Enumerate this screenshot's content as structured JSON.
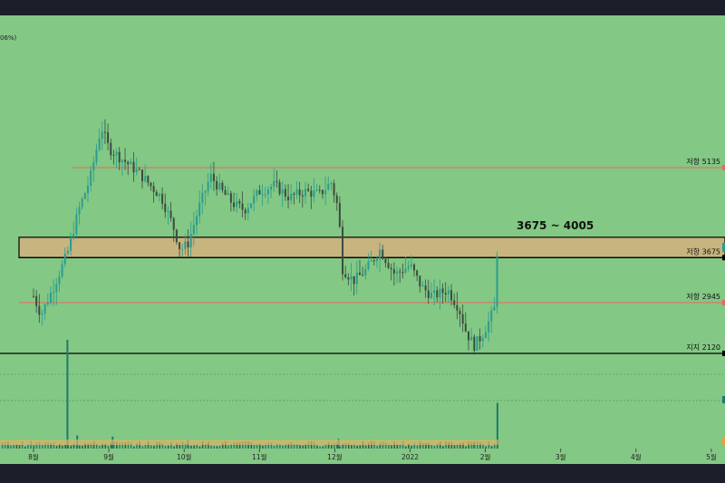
{
  "header": {
    "corner_text": "06%)"
  },
  "chart_data": {
    "type": "candlestick",
    "title": "",
    "xlabel": "",
    "ylabel": "",
    "x_ticks": [
      "8월",
      "9월",
      "10월",
      "11월",
      "12월",
      "2022",
      "2월",
      "3월",
      "4월",
      "5월"
    ],
    "ylim": [
      1700,
      6600
    ],
    "levels": [
      {
        "label": "저항 5135",
        "value": 5135,
        "color": "#e8685f"
      },
      {
        "label": "저항 3675",
        "value": 3675,
        "color": "#000000"
      },
      {
        "label": "저항 2945",
        "value": 2945,
        "color": "#e8685f"
      },
      {
        "label": "지지 2120",
        "value": 2120,
        "color": "#000000"
      }
    ],
    "zone": {
      "low": 3675,
      "high": 4005,
      "label": "3675 ~ 4005",
      "fill": "#c7b47f"
    },
    "price_path": [
      {
        "x": 0.0,
        "y": 3050
      },
      {
        "x": 0.1,
        "y": 2750
      },
      {
        "x": 0.25,
        "y": 3150
      },
      {
        "x": 0.45,
        "y": 3750
      },
      {
        "x": 0.6,
        "y": 4450
      },
      {
        "x": 0.75,
        "y": 4950
      },
      {
        "x": 0.9,
        "y": 5800
      },
      {
        "x": 1.0,
        "y": 5450
      },
      {
        "x": 1.1,
        "y": 5350
      },
      {
        "x": 1.25,
        "y": 5200
      },
      {
        "x": 1.4,
        "y": 5050
      },
      {
        "x": 1.55,
        "y": 4850
      },
      {
        "x": 1.7,
        "y": 4650
      },
      {
        "x": 1.85,
        "y": 4200
      },
      {
        "x": 1.95,
        "y": 3800
      },
      {
        "x": 2.05,
        "y": 3900
      },
      {
        "x": 2.2,
        "y": 4500
      },
      {
        "x": 2.35,
        "y": 5000
      },
      {
        "x": 2.5,
        "y": 4750
      },
      {
        "x": 2.65,
        "y": 4550
      },
      {
        "x": 2.8,
        "y": 4450
      },
      {
        "x": 3.0,
        "y": 4750
      },
      {
        "x": 3.2,
        "y": 4850
      },
      {
        "x": 3.4,
        "y": 4650
      },
      {
        "x": 3.6,
        "y": 4750
      },
      {
        "x": 3.8,
        "y": 4700
      },
      {
        "x": 3.95,
        "y": 4900
      },
      {
        "x": 4.05,
        "y": 4450
      },
      {
        "x": 4.1,
        "y": 3500
      },
      {
        "x": 4.25,
        "y": 3300
      },
      {
        "x": 4.4,
        "y": 3450
      },
      {
        "x": 4.6,
        "y": 3800
      },
      {
        "x": 4.8,
        "y": 3400
      },
      {
        "x": 5.0,
        "y": 3550
      },
      {
        "x": 5.15,
        "y": 3200
      },
      {
        "x": 5.3,
        "y": 3050
      },
      {
        "x": 5.5,
        "y": 3150
      },
      {
        "x": 5.65,
        "y": 2850
      },
      {
        "x": 5.75,
        "y": 2450
      },
      {
        "x": 5.85,
        "y": 2250
      },
      {
        "x": 5.95,
        "y": 2400
      },
      {
        "x": 6.05,
        "y": 2650
      },
      {
        "x": 6.12,
        "y": 2850
      },
      {
        "x": 6.15,
        "y": 3600
      },
      {
        "x": 6.17,
        "y": 4150
      }
    ],
    "volume_scale_max": 100,
    "volume_spikes": [
      {
        "x": 0.45,
        "v": 100
      },
      {
        "x": 0.58,
        "v": 12
      },
      {
        "x": 1.05,
        "v": 11
      },
      {
        "x": 2.05,
        "v": 8
      },
      {
        "x": 4.05,
        "v": 9
      },
      {
        "x": 5.85,
        "v": 6
      },
      {
        "x": 6.16,
        "v": 42
      }
    ]
  }
}
